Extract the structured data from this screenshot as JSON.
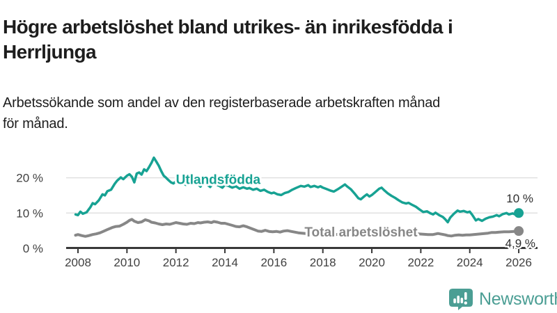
{
  "header": {
    "title": "Högre arbetslöshet bland utrikes- än inrikesfödda i\nHerrljunga",
    "subtitle": "Arbetssökande som andel av den registerbaserade arbetskraften månad\nför månad."
  },
  "footer": {
    "brand": "Newsworthy"
  },
  "colors": {
    "teal": "#17a293",
    "gray": "#878787",
    "axis": "#383838",
    "grid": "#e0e0e0",
    "tick_text": "#404040",
    "logo_teal": "#4b9e94",
    "background": "#ffffff"
  },
  "chart_data": {
    "type": "line",
    "title": "Högre arbetslöshet bland utrikes- än inrikesfödda i Herrljunga",
    "subtitle": "Arbetssökande som andel av den registerbaserade arbetskraften månad för månad.",
    "xlabel": "",
    "ylabel": "",
    "xlim": [
      2007.5,
      2026.8
    ],
    "ylim": [
      0,
      27
    ],
    "grid": "horizontal",
    "legend_position": "inline-labels",
    "x_ticks": [
      2008,
      2010,
      2012,
      2014,
      2016,
      2018,
      2020,
      2022,
      2024,
      2026
    ],
    "y_ticks": [
      {
        "value": 0,
        "label": "0 %"
      },
      {
        "value": 10,
        "label": "10 %"
      },
      {
        "value": 20,
        "label": "20 %"
      }
    ],
    "series": [
      {
        "name": "Utlandsfödda",
        "color": "#17a293",
        "end_label": "10 %",
        "end_value": 10.0,
        "label_pos": {
          "x": 2012.0,
          "y": 18.2
        },
        "points": [
          [
            2007.9,
            9.6
          ],
          [
            2008.0,
            9.4
          ],
          [
            2008.1,
            10.4
          ],
          [
            2008.2,
            9.8
          ],
          [
            2008.35,
            10.2
          ],
          [
            2008.5,
            11.6
          ],
          [
            2008.6,
            12.8
          ],
          [
            2008.7,
            12.5
          ],
          [
            2008.85,
            13.6
          ],
          [
            2009.0,
            15.3
          ],
          [
            2009.1,
            15.0
          ],
          [
            2009.2,
            16.2
          ],
          [
            2009.35,
            16.6
          ],
          [
            2009.5,
            18.3
          ],
          [
            2009.6,
            19.2
          ],
          [
            2009.75,
            20.1
          ],
          [
            2009.85,
            19.6
          ],
          [
            2010.0,
            20.6
          ],
          [
            2010.1,
            21.0
          ],
          [
            2010.2,
            20.3
          ],
          [
            2010.3,
            18.7
          ],
          [
            2010.4,
            21.2
          ],
          [
            2010.5,
            21.5
          ],
          [
            2010.6,
            20.9
          ],
          [
            2010.7,
            22.4
          ],
          [
            2010.8,
            21.9
          ],
          [
            2010.9,
            23.0
          ],
          [
            2011.0,
            24.2
          ],
          [
            2011.1,
            25.7
          ],
          [
            2011.2,
            24.6
          ],
          [
            2011.3,
            23.4
          ],
          [
            2011.4,
            21.9
          ],
          [
            2011.5,
            20.6
          ],
          [
            2011.6,
            20.0
          ],
          [
            2011.7,
            19.3
          ],
          [
            2011.8,
            18.7
          ],
          [
            2011.9,
            18.4
          ],
          [
            2012.0,
            19.0
          ],
          [
            2012.1,
            19.7
          ],
          [
            2012.2,
            19.3
          ],
          [
            2012.3,
            18.5
          ],
          [
            2012.4,
            18.0
          ],
          [
            2012.5,
            18.8
          ],
          [
            2012.6,
            19.0
          ],
          [
            2012.7,
            19.5
          ],
          [
            2012.85,
            18.6
          ],
          [
            2013.0,
            17.5
          ],
          [
            2013.1,
            18.5
          ],
          [
            2013.25,
            18.2
          ],
          [
            2013.4,
            17.4
          ],
          [
            2013.5,
            18.3
          ],
          [
            2013.6,
            18.1
          ],
          [
            2013.75,
            17.8
          ],
          [
            2013.9,
            17.2
          ],
          [
            2014.0,
            18.0
          ],
          [
            2014.15,
            17.7
          ],
          [
            2014.3,
            17.2
          ],
          [
            2014.45,
            17.6
          ],
          [
            2014.6,
            16.9
          ],
          [
            2014.75,
            17.3
          ],
          [
            2014.9,
            16.9
          ],
          [
            2015.0,
            17.1
          ],
          [
            2015.15,
            16.6
          ],
          [
            2015.3,
            16.9
          ],
          [
            2015.45,
            16.3
          ],
          [
            2015.6,
            16.6
          ],
          [
            2015.75,
            16.0
          ],
          [
            2015.9,
            15.6
          ],
          [
            2016.0,
            15.8
          ],
          [
            2016.15,
            15.3
          ],
          [
            2016.3,
            15.1
          ],
          [
            2016.45,
            15.7
          ],
          [
            2016.6,
            16.0
          ],
          [
            2016.75,
            16.6
          ],
          [
            2016.9,
            17.1
          ],
          [
            2017.0,
            17.4
          ],
          [
            2017.1,
            17.7
          ],
          [
            2017.25,
            17.5
          ],
          [
            2017.4,
            17.9
          ],
          [
            2017.5,
            17.4
          ],
          [
            2017.65,
            17.7
          ],
          [
            2017.8,
            17.3
          ],
          [
            2017.9,
            17.6
          ],
          [
            2018.0,
            17.2
          ],
          [
            2018.15,
            16.8
          ],
          [
            2018.3,
            16.4
          ],
          [
            2018.45,
            16.1
          ],
          [
            2018.6,
            16.7
          ],
          [
            2018.75,
            17.4
          ],
          [
            2018.9,
            18.1
          ],
          [
            2019.0,
            17.5
          ],
          [
            2019.15,
            16.7
          ],
          [
            2019.3,
            15.5
          ],
          [
            2019.45,
            14.2
          ],
          [
            2019.55,
            13.9
          ],
          [
            2019.7,
            14.8
          ],
          [
            2019.8,
            15.3
          ],
          [
            2019.9,
            14.7
          ],
          [
            2020.0,
            15.1
          ],
          [
            2020.15,
            16.0
          ],
          [
            2020.3,
            16.9
          ],
          [
            2020.4,
            17.2
          ],
          [
            2020.5,
            16.5
          ],
          [
            2020.65,
            15.6
          ],
          [
            2020.8,
            14.9
          ],
          [
            2020.95,
            14.3
          ],
          [
            2021.1,
            13.6
          ],
          [
            2021.25,
            13.0
          ],
          [
            2021.4,
            12.7
          ],
          [
            2021.5,
            12.9
          ],
          [
            2021.65,
            12.3
          ],
          [
            2021.8,
            11.8
          ],
          [
            2021.95,
            11.0
          ],
          [
            2022.1,
            10.3
          ],
          [
            2022.25,
            10.5
          ],
          [
            2022.4,
            9.9
          ],
          [
            2022.5,
            9.6
          ],
          [
            2022.6,
            10.1
          ],
          [
            2022.75,
            9.4
          ],
          [
            2022.9,
            8.9
          ],
          [
            2023.0,
            8.2
          ],
          [
            2023.1,
            7.4
          ],
          [
            2023.2,
            8.7
          ],
          [
            2023.35,
            9.8
          ],
          [
            2023.5,
            10.7
          ],
          [
            2023.6,
            10.4
          ],
          [
            2023.75,
            10.6
          ],
          [
            2023.9,
            10.2
          ],
          [
            2024.0,
            10.4
          ],
          [
            2024.1,
            9.5
          ],
          [
            2024.25,
            7.9
          ],
          [
            2024.35,
            8.3
          ],
          [
            2024.5,
            7.8
          ],
          [
            2024.65,
            8.4
          ],
          [
            2024.8,
            8.8
          ],
          [
            2024.95,
            9.0
          ],
          [
            2025.1,
            9.4
          ],
          [
            2025.2,
            9.1
          ],
          [
            2025.35,
            9.7
          ],
          [
            2025.5,
            10.0
          ],
          [
            2025.6,
            9.6
          ],
          [
            2025.75,
            9.9
          ],
          [
            2025.85,
            9.6
          ],
          [
            2026.0,
            10.0
          ]
        ]
      },
      {
        "name": "Total arbetslöshet",
        "color": "#878787",
        "end_label": "4,9 %",
        "end_value": 4.9,
        "label_pos": {
          "x": 2017.25,
          "y": 3.4
        },
        "points": [
          [
            2007.9,
            3.7
          ],
          [
            2008.0,
            3.9
          ],
          [
            2008.15,
            3.6
          ],
          [
            2008.3,
            3.4
          ],
          [
            2008.45,
            3.6
          ],
          [
            2008.6,
            3.9
          ],
          [
            2008.75,
            4.1
          ],
          [
            2008.9,
            4.4
          ],
          [
            2009.0,
            4.7
          ],
          [
            2009.2,
            5.3
          ],
          [
            2009.4,
            5.9
          ],
          [
            2009.55,
            6.2
          ],
          [
            2009.7,
            6.3
          ],
          [
            2009.85,
            6.8
          ],
          [
            2010.0,
            7.4
          ],
          [
            2010.1,
            7.9
          ],
          [
            2010.2,
            8.2
          ],
          [
            2010.3,
            7.7
          ],
          [
            2010.45,
            7.3
          ],
          [
            2010.6,
            7.5
          ],
          [
            2010.75,
            8.1
          ],
          [
            2010.9,
            7.8
          ],
          [
            2011.0,
            7.4
          ],
          [
            2011.15,
            7.2
          ],
          [
            2011.3,
            6.9
          ],
          [
            2011.45,
            6.7
          ],
          [
            2011.6,
            6.9
          ],
          [
            2011.75,
            6.8
          ],
          [
            2011.9,
            7.1
          ],
          [
            2012.0,
            7.3
          ],
          [
            2012.15,
            7.1
          ],
          [
            2012.3,
            6.9
          ],
          [
            2012.45,
            6.8
          ],
          [
            2012.6,
            7.1
          ],
          [
            2012.75,
            7.0
          ],
          [
            2012.9,
            7.3
          ],
          [
            2013.0,
            7.2
          ],
          [
            2013.15,
            7.4
          ],
          [
            2013.3,
            7.5
          ],
          [
            2013.45,
            7.3
          ],
          [
            2013.55,
            7.6
          ],
          [
            2013.7,
            7.4
          ],
          [
            2013.85,
            7.1
          ],
          [
            2014.0,
            7.1
          ],
          [
            2014.15,
            6.8
          ],
          [
            2014.3,
            6.5
          ],
          [
            2014.45,
            6.2
          ],
          [
            2014.6,
            6.1
          ],
          [
            2014.75,
            6.4
          ],
          [
            2014.9,
            6.1
          ],
          [
            2015.05,
            5.7
          ],
          [
            2015.2,
            5.3
          ],
          [
            2015.35,
            4.9
          ],
          [
            2015.5,
            4.8
          ],
          [
            2015.65,
            5.1
          ],
          [
            2015.8,
            4.8
          ],
          [
            2015.95,
            4.7
          ],
          [
            2016.1,
            4.8
          ],
          [
            2016.25,
            4.6
          ],
          [
            2016.4,
            4.9
          ],
          [
            2016.55,
            5.0
          ],
          [
            2016.7,
            4.8
          ],
          [
            2016.85,
            4.6
          ],
          [
            2017.0,
            4.4
          ],
          [
            2017.15,
            4.3
          ],
          [
            2017.3,
            4.2
          ],
          [
            2017.5,
            4.2
          ],
          [
            2017.7,
            4.1
          ],
          [
            2017.9,
            4.0
          ],
          [
            2018.1,
            4.1
          ],
          [
            2018.3,
            4.0
          ],
          [
            2018.5,
            3.9
          ],
          [
            2018.7,
            4.0
          ],
          [
            2018.9,
            4.1
          ],
          [
            2019.1,
            4.2
          ],
          [
            2019.3,
            4.2
          ],
          [
            2019.5,
            4.3
          ],
          [
            2019.7,
            4.4
          ],
          [
            2019.9,
            4.5
          ],
          [
            2020.1,
            4.8
          ],
          [
            2020.3,
            5.2
          ],
          [
            2020.5,
            5.4
          ],
          [
            2020.7,
            5.2
          ],
          [
            2020.9,
            5.0
          ],
          [
            2021.1,
            4.9
          ],
          [
            2021.3,
            4.7
          ],
          [
            2021.5,
            4.5
          ],
          [
            2021.7,
            4.3
          ],
          [
            2021.9,
            4.1
          ],
          [
            2022.1,
            4.0
          ],
          [
            2022.3,
            3.9
          ],
          [
            2022.5,
            3.9
          ],
          [
            2022.7,
            4.2
          ],
          [
            2022.85,
            4.0
          ],
          [
            2023.0,
            3.8
          ],
          [
            2023.1,
            3.6
          ],
          [
            2023.25,
            3.5
          ],
          [
            2023.4,
            3.7
          ],
          [
            2023.55,
            3.8
          ],
          [
            2023.7,
            3.7
          ],
          [
            2023.85,
            3.8
          ],
          [
            2024.0,
            3.8
          ],
          [
            2024.15,
            3.9
          ],
          [
            2024.3,
            4.0
          ],
          [
            2024.45,
            4.1
          ],
          [
            2024.6,
            4.2
          ],
          [
            2024.75,
            4.3
          ],
          [
            2024.9,
            4.5
          ],
          [
            2025.05,
            4.5
          ],
          [
            2025.2,
            4.6
          ],
          [
            2025.4,
            4.7
          ],
          [
            2025.6,
            4.7
          ],
          [
            2025.8,
            4.8
          ],
          [
            2026.0,
            4.9
          ]
        ]
      }
    ]
  }
}
